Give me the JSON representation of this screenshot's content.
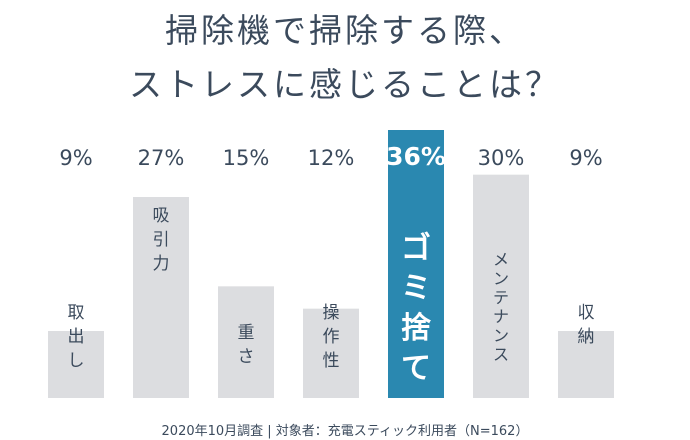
{
  "title_line1": "掃除機で掃除する際、",
  "title_line2": "ストレスに感じることは？",
  "footnote": "2020年10月調査 | 対象者：充電スティック利用者（N=162）",
  "colors": {
    "bar": "#dcdde0",
    "highlight": "#2a88b0",
    "text": "#3b4a5c",
    "highlight_text": "#ffffff"
  },
  "chart_data": {
    "type": "bar",
    "title": "掃除機で掃除する際、ストレスに感じることは？",
    "categories": [
      "取出し",
      "吸引力",
      "重さ",
      "操作性",
      "ゴミ捨て",
      "メンテナンス",
      "収納"
    ],
    "values": [
      9,
      27,
      15,
      12,
      36,
      30,
      9
    ],
    "value_labels": [
      "9%",
      "27%",
      "15%",
      "12%",
      "36%",
      "30%",
      "9%"
    ],
    "highlight_index": 4,
    "xlabel": "",
    "ylabel": "",
    "ylim": [
      0,
      36
    ]
  }
}
